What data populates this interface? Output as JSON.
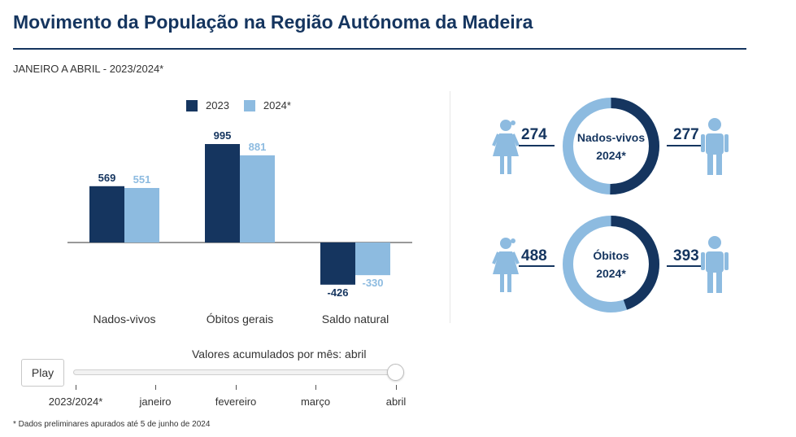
{
  "header": {
    "title": "Movimento da População na Região Autónoma da Madeira",
    "subtitle": "JANEIRO A ABRIL - 2023/2024*"
  },
  "colors": {
    "dark": "#15355f",
    "light": "#8dbbe0"
  },
  "chart_data": [
    {
      "type": "bar",
      "categories": [
        "Nados-vivos",
        "Óbitos gerais",
        "Saldo natural"
      ],
      "series": [
        {
          "name": "2023",
          "values": [
            569,
            995,
            -426
          ]
        },
        {
          "name": "2024*",
          "values": [
            551,
            881,
            -330
          ]
        }
      ],
      "value_labels": [
        [
          "569",
          "995",
          "-426"
        ],
        [
          "551",
          "881",
          "-330"
        ]
      ],
      "legend": [
        "2023",
        "2024*"
      ],
      "ylim": [
        -520,
        1100
      ]
    },
    {
      "type": "pie",
      "title_line1": "Nados-vivos",
      "title_line2": "2024*",
      "labels": [
        "Feminino",
        "Masculino"
      ],
      "values": [
        274,
        277
      ],
      "value_labels": [
        "274",
        "277"
      ]
    },
    {
      "type": "pie",
      "title_line1": "Óbitos",
      "title_line2": "2024*",
      "labels": [
        "Feminino",
        "Masculino"
      ],
      "values": [
        488,
        393
      ],
      "value_labels": [
        "488",
        "393"
      ]
    }
  ],
  "slider": {
    "caption": "Valores acumulados por mês: abril",
    "play_label": "Play",
    "ticks": [
      "2023/2024*",
      "janeiro",
      "fevereiro",
      "março",
      "abril"
    ],
    "selected": "abril"
  },
  "footnote": "* Dados preliminares apurados até 5 de junho de 2024"
}
